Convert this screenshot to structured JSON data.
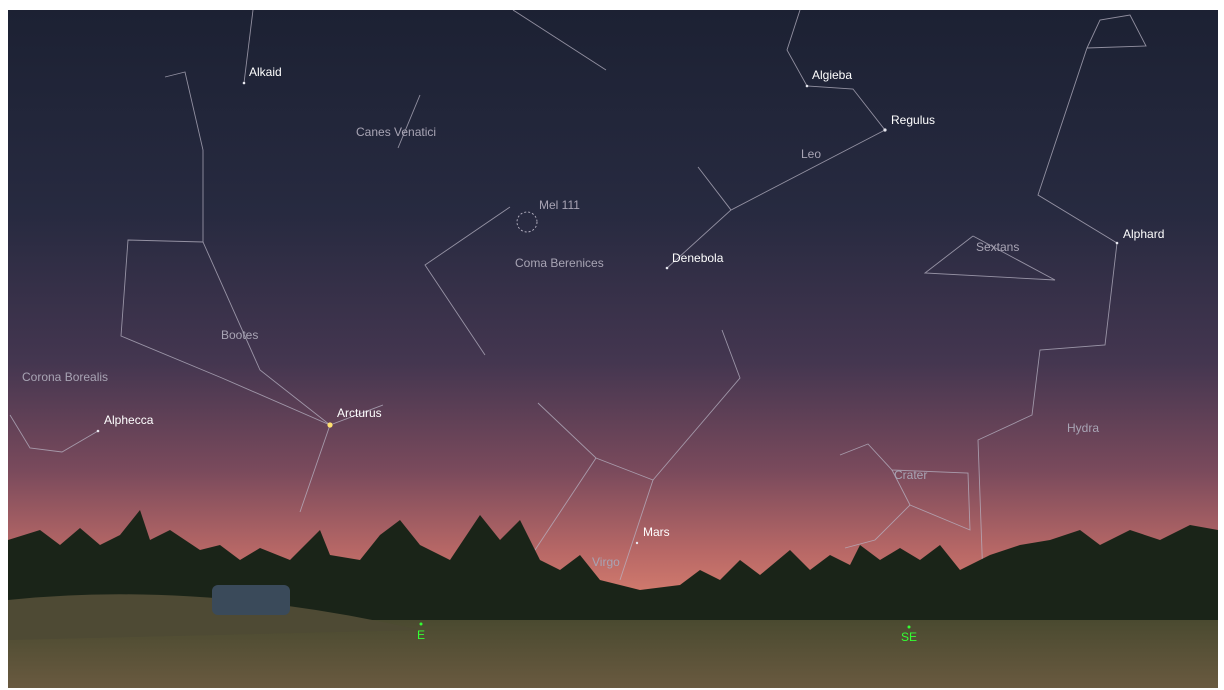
{
  "stars": [
    "Alkaid",
    "Algieba",
    "Regulus",
    "Denebola",
    "Alphard",
    "Arcturus",
    "Alphecca",
    "Mars"
  ],
  "constellations": [
    "Canes Venatici",
    "Leo",
    "Coma Berenices",
    "Sextans",
    "Bootes",
    "Corona Borealis",
    "Hydra",
    "Crater",
    "Virgo"
  ],
  "deep_sky": [
    "Mel 111"
  ],
  "compass": [
    "E",
    "SE"
  ]
}
